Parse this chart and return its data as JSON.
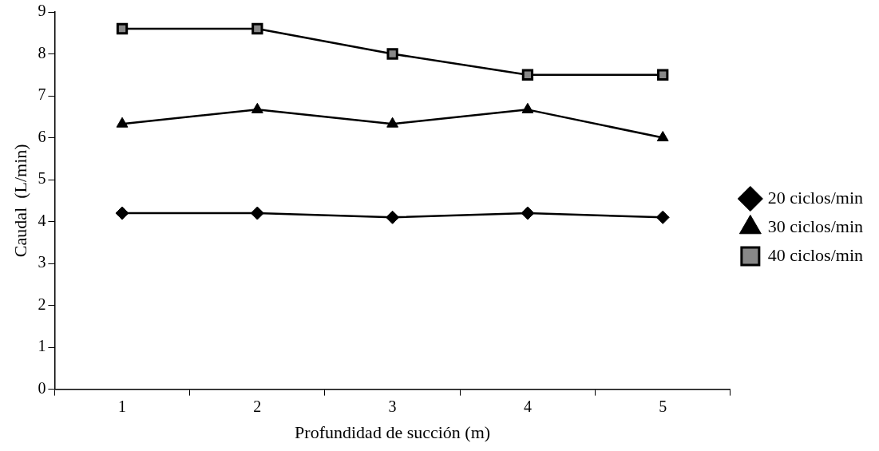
{
  "chart_data": {
    "type": "line",
    "xlabel": "Profundidad de succión (m)",
    "ylabel": "Caudal  (L/min)",
    "categories": [
      "1",
      "2",
      "3",
      "4",
      "5"
    ],
    "series": [
      {
        "name": "20 ciclos/min",
        "color": "#000000",
        "marker": "diamond",
        "values": [
          4.2,
          4.2,
          4.1,
          4.2,
          4.1
        ]
      },
      {
        "name": "30 ciclos/min",
        "color": "#000000",
        "marker": "triangle",
        "values": [
          6.33,
          6.67,
          6.33,
          6.67,
          6.0
        ]
      },
      {
        "name": "40 ciclos/min",
        "color": "#000000",
        "marker": "square",
        "values": [
          8.6,
          8.6,
          8.0,
          7.5,
          7.5
        ]
      }
    ],
    "ylim": [
      0,
      9
    ],
    "yticks": [
      0,
      1,
      2,
      3,
      4,
      5,
      6,
      7,
      8,
      9
    ],
    "grid": false,
    "legend": "right",
    "line_style": "solid"
  }
}
